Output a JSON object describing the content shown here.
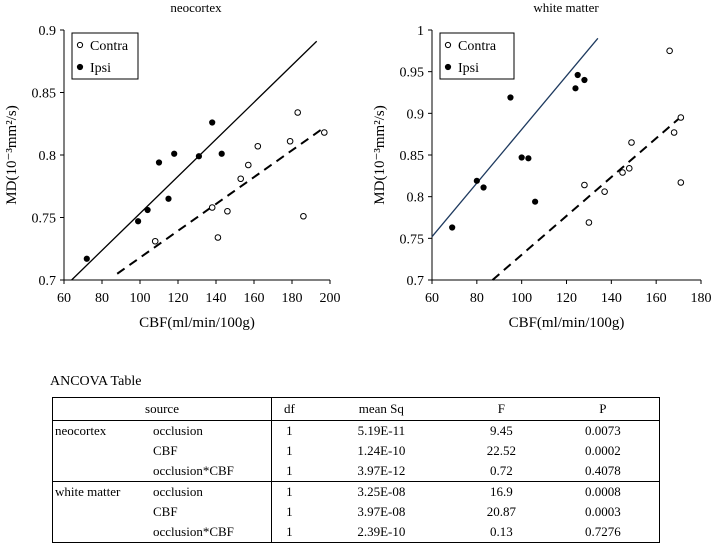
{
  "chart_data": [
    {
      "type": "scatter",
      "title": "neocortex",
      "xlabel": "CBF(ml/min/100g)",
      "ylabel": "MD(10⁻³mm²/s)",
      "xlim": [
        60,
        200
      ],
      "ylim": [
        0.7,
        0.9
      ],
      "xticks": [
        "60",
        "80",
        "100",
        "120",
        "140",
        "160",
        "180",
        "200"
      ],
      "yticks": [
        "0.7",
        "0.75",
        "0.8",
        "0.85",
        "0.9"
      ],
      "legend": [
        "Contra",
        "Ipsi"
      ],
      "series": [
        {
          "name": "Contra",
          "marker": "open-circle",
          "x": [
            108,
            138,
            141,
            146,
            153,
            157,
            162,
            179,
            183,
            186,
            197
          ],
          "y": [
            0.731,
            0.758,
            0.734,
            0.755,
            0.781,
            0.792,
            0.807,
            0.811,
            0.834,
            0.751,
            0.818
          ]
        },
        {
          "name": "Ipsi",
          "marker": "filled-circle",
          "x": [
            72,
            99,
            104,
            110,
            115,
            118,
            131,
            138,
            143
          ],
          "y": [
            0.717,
            0.747,
            0.756,
            0.794,
            0.765,
            0.801,
            0.799,
            0.826,
            0.801
          ]
        }
      ],
      "fit_lines": [
        {
          "series": "Ipsi",
          "style": "solid",
          "x": [
            64,
            193
          ],
          "y": [
            0.7,
            0.891
          ]
        },
        {
          "series": "Contra",
          "style": "dashed",
          "x": [
            88,
            197
          ],
          "y": [
            0.705,
            0.822
          ]
        }
      ]
    },
    {
      "type": "scatter",
      "title": "white matter",
      "xlabel": "CBF(ml/min/100g)",
      "ylabel": "MD(10⁻³mm²/s)",
      "xlim": [
        60,
        180
      ],
      "ylim": [
        0.7,
        1.0
      ],
      "xticks": [
        "60",
        "80",
        "100",
        "120",
        "140",
        "160",
        "180"
      ],
      "yticks": [
        "0.7",
        "0.75",
        "0.8",
        "0.85",
        "0.9",
        "0.95",
        "1"
      ],
      "legend": [
        "Contra",
        "Ipsi"
      ],
      "series": [
        {
          "name": "Contra",
          "marker": "open-circle",
          "x": [
            128,
            130,
            137,
            145,
            148,
            149,
            166,
            168,
            171,
            171
          ],
          "y": [
            0.814,
            0.769,
            0.806,
            0.829,
            0.834,
            0.865,
            0.975,
            0.877,
            0.895,
            0.817
          ]
        },
        {
          "name": "Ipsi",
          "marker": "filled-circle",
          "x": [
            69,
            80,
            83,
            95,
            100,
            103,
            106,
            124,
            125,
            128
          ],
          "y": [
            0.763,
            0.819,
            0.811,
            0.919,
            0.847,
            0.846,
            0.794,
            0.93,
            0.946,
            0.94
          ]
        }
      ],
      "fit_lines": [
        {
          "series": "Ipsi",
          "style": "solid",
          "x": [
            60,
            134
          ],
          "y": [
            0.752,
            0.99
          ]
        },
        {
          "series": "Contra",
          "style": "dashed",
          "x": [
            87,
            172
          ],
          "y": [
            0.7,
            0.898
          ]
        }
      ]
    }
  ],
  "anova": {
    "title": "ANCOVA Table",
    "headers": [
      "source",
      "df",
      "mean Sq",
      "F",
      "P"
    ],
    "rows": [
      {
        "group": "neocortex",
        "effect": "occlusion",
        "df": "1",
        "mean_sq": "5.19E-11",
        "F": "9.45",
        "P": "0.0073"
      },
      {
        "group": "",
        "effect": "CBF",
        "df": "1",
        "mean_sq": "1.24E-10",
        "F": "22.52",
        "P": "0.0002"
      },
      {
        "group": "",
        "effect": "occlusion*CBF",
        "df": "1",
        "mean_sq": "3.97E-12",
        "F": "0.72",
        "P": "0.4078"
      },
      {
        "group": "white matter",
        "effect": "occlusion",
        "df": "1",
        "mean_sq": "3.25E-08",
        "F": "16.9",
        "P": "0.0008"
      },
      {
        "group": "",
        "effect": "CBF",
        "df": "1",
        "mean_sq": "3.97E-08",
        "F": "20.87",
        "P": "0.0003"
      },
      {
        "group": "",
        "effect": "occlusion*CBF",
        "df": "1",
        "mean_sq": "2.39E-10",
        "F": "0.13",
        "P": "0.7276"
      }
    ]
  }
}
